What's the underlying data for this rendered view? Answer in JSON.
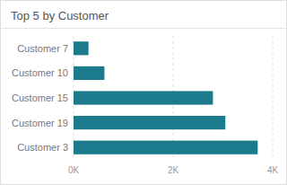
{
  "chart_data": {
    "type": "bar",
    "orientation": "horizontal",
    "title": "Top 5 by Customer",
    "categories": [
      "Customer 7",
      "Customer 10",
      "Customer 15",
      "Customer 19",
      "Customer 3"
    ],
    "values": [
      300,
      620,
      2800,
      3050,
      3700
    ],
    "color": "#1B7A8C",
    "xlim": [
      0,
      4000
    ],
    "xticks": [
      {
        "value": 0,
        "label": "0K"
      },
      {
        "value": 2000,
        "label": "2K"
      },
      {
        "value": 4000,
        "label": "4K"
      }
    ],
    "grid": true
  }
}
